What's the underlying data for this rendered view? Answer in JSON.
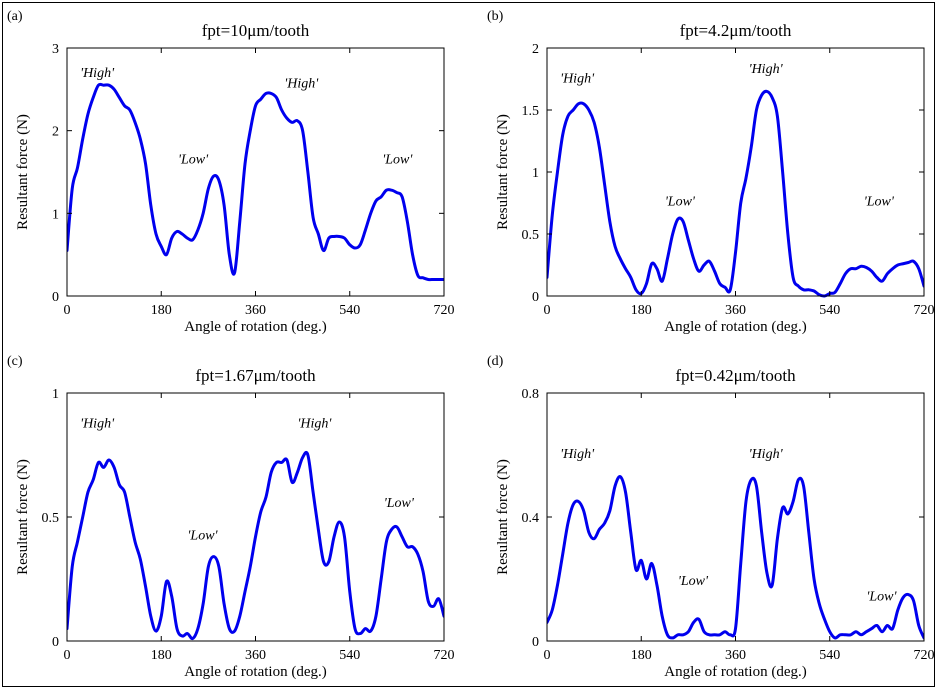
{
  "accent_color": "#0000ee",
  "chart_data": [
    {
      "type": "line",
      "panel_label": "(a)",
      "title": "fpt=10μm/tooth",
      "xlabel": "Angle of rotation (deg.)",
      "ylabel": "Resultant force (N)",
      "xlim": [
        0,
        720
      ],
      "ylim": [
        0,
        3
      ],
      "xticks": [
        0,
        180,
        360,
        540,
        720
      ],
      "yticks": [
        0,
        1,
        2,
        3
      ],
      "grid": false,
      "series": [
        {
          "color": "#0000ee",
          "x": [
            0,
            10,
            20,
            30,
            40,
            50,
            60,
            70,
            80,
            90,
            100,
            110,
            120,
            130,
            140,
            150,
            160,
            170,
            180,
            190,
            200,
            210,
            220,
            230,
            240,
            250,
            260,
            270,
            280,
            290,
            300,
            310,
            320,
            330,
            340,
            350,
            360,
            370,
            380,
            390,
            400,
            410,
            420,
            430,
            440,
            450,
            460,
            470,
            480,
            490,
            500,
            510,
            520,
            530,
            540,
            550,
            560,
            570,
            580,
            590,
            600,
            610,
            620,
            630,
            640,
            650,
            660,
            670,
            680,
            690,
            700,
            710,
            720
          ],
          "y": [
            0.55,
            1.3,
            1.55,
            1.9,
            2.2,
            2.4,
            2.55,
            2.55,
            2.55,
            2.5,
            2.4,
            2.3,
            2.25,
            2.1,
            1.9,
            1.6,
            1.1,
            0.75,
            0.6,
            0.5,
            0.7,
            0.78,
            0.75,
            0.7,
            0.68,
            0.8,
            1.0,
            1.3,
            1.45,
            1.4,
            1.1,
            0.5,
            0.28,
            0.9,
            1.6,
            2.0,
            2.3,
            2.38,
            2.45,
            2.45,
            2.4,
            2.25,
            2.15,
            2.1,
            2.12,
            2.0,
            1.5,
            0.95,
            0.75,
            0.55,
            0.7,
            0.72,
            0.72,
            0.7,
            0.62,
            0.58,
            0.62,
            0.8,
            1.0,
            1.15,
            1.2,
            1.28,
            1.28,
            1.25,
            1.2,
            0.9,
            0.5,
            0.25,
            0.22,
            0.2,
            0.2,
            0.2,
            0.2
          ]
        }
      ],
      "annotations": [
        {
          "text": "'High'",
          "x": 25,
          "y": 2.65
        },
        {
          "text": "'Low'",
          "x": 212,
          "y": 1.6
        },
        {
          "text": "'High'",
          "x": 415,
          "y": 2.52
        },
        {
          "text": "'Low'",
          "x": 602,
          "y": 1.6
        }
      ]
    },
    {
      "type": "line",
      "panel_label": "(b)",
      "title": "fpt=4.2μm/tooth",
      "xlabel": "Angle of rotation (deg.)",
      "ylabel": "Resultant force (N)",
      "xlim": [
        0,
        720
      ],
      "ylim": [
        0,
        2
      ],
      "xticks": [
        0,
        180,
        360,
        540,
        720
      ],
      "yticks": [
        0,
        0.5,
        1,
        1.5,
        2
      ],
      "grid": false,
      "series": [
        {
          "color": "#0000ee",
          "x": [
            0,
            10,
            20,
            30,
            40,
            50,
            60,
            70,
            80,
            90,
            100,
            110,
            120,
            130,
            140,
            150,
            160,
            170,
            180,
            190,
            200,
            210,
            220,
            230,
            240,
            250,
            260,
            270,
            280,
            290,
            300,
            310,
            320,
            330,
            340,
            350,
            360,
            370,
            380,
            390,
            400,
            410,
            420,
            430,
            440,
            450,
            460,
            470,
            480,
            490,
            500,
            510,
            520,
            530,
            540,
            550,
            560,
            570,
            580,
            590,
            600,
            610,
            620,
            630,
            640,
            650,
            660,
            670,
            680,
            690,
            700,
            710,
            720
          ],
          "y": [
            0.15,
            0.65,
            1.0,
            1.3,
            1.45,
            1.5,
            1.55,
            1.55,
            1.5,
            1.4,
            1.2,
            0.9,
            0.6,
            0.4,
            0.3,
            0.22,
            0.15,
            0.05,
            0.02,
            0.1,
            0.26,
            0.22,
            0.12,
            0.3,
            0.5,
            0.62,
            0.6,
            0.45,
            0.3,
            0.2,
            0.25,
            0.28,
            0.2,
            0.1,
            0.07,
            0.05,
            0.35,
            0.75,
            0.95,
            1.2,
            1.5,
            1.62,
            1.65,
            1.6,
            1.45,
            1.0,
            0.5,
            0.15,
            0.08,
            0.05,
            0.05,
            0.04,
            0.01,
            0.0,
            0.02,
            0.03,
            0.1,
            0.18,
            0.22,
            0.22,
            0.24,
            0.23,
            0.2,
            0.15,
            0.12,
            0.18,
            0.22,
            0.25,
            0.26,
            0.27,
            0.28,
            0.22,
            0.08
          ]
        }
      ],
      "annotations": [
        {
          "text": "'High'",
          "x": 25,
          "y": 1.72
        },
        {
          "text": "'Low'",
          "x": 225,
          "y": 0.73
        },
        {
          "text": "'High'",
          "x": 385,
          "y": 1.8
        },
        {
          "text": "'Low'",
          "x": 605,
          "y": 0.73
        }
      ]
    },
    {
      "type": "line",
      "panel_label": "(c)",
      "title": "fpt=1.67μm/tooth",
      "xlabel": "Angle of rotation (deg.)",
      "ylabel": "Resultant force (N)",
      "xlim": [
        0,
        720
      ],
      "ylim": [
        0,
        1
      ],
      "xticks": [
        0,
        180,
        360,
        540,
        720
      ],
      "yticks": [
        0,
        0.5,
        1
      ],
      "grid": false,
      "series": [
        {
          "color": "#0000ee",
          "x": [
            0,
            10,
            20,
            30,
            40,
            50,
            60,
            70,
            80,
            90,
            100,
            110,
            120,
            130,
            140,
            150,
            160,
            170,
            180,
            190,
            200,
            210,
            220,
            230,
            240,
            250,
            260,
            270,
            280,
            290,
            300,
            310,
            320,
            330,
            340,
            350,
            360,
            370,
            380,
            390,
            400,
            410,
            420,
            430,
            440,
            450,
            460,
            470,
            480,
            490,
            500,
            510,
            520,
            530,
            540,
            550,
            560,
            570,
            580,
            590,
            600,
            610,
            620,
            630,
            640,
            650,
            660,
            670,
            680,
            690,
            700,
            710,
            720
          ],
          "y": [
            0.05,
            0.3,
            0.4,
            0.5,
            0.6,
            0.65,
            0.72,
            0.7,
            0.73,
            0.7,
            0.63,
            0.6,
            0.5,
            0.4,
            0.33,
            0.22,
            0.1,
            0.04,
            0.1,
            0.24,
            0.18,
            0.05,
            0.02,
            0.03,
            0.01,
            0.05,
            0.15,
            0.3,
            0.34,
            0.3,
            0.15,
            0.05,
            0.04,
            0.1,
            0.2,
            0.3,
            0.42,
            0.52,
            0.58,
            0.68,
            0.72,
            0.72,
            0.73,
            0.64,
            0.68,
            0.74,
            0.75,
            0.6,
            0.45,
            0.32,
            0.32,
            0.42,
            0.48,
            0.42,
            0.2,
            0.05,
            0.03,
            0.05,
            0.04,
            0.1,
            0.25,
            0.4,
            0.45,
            0.46,
            0.42,
            0.38,
            0.38,
            0.35,
            0.28,
            0.16,
            0.14,
            0.17,
            0.1
          ]
        }
      ],
      "annotations": [
        {
          "text": "'High'",
          "x": 25,
          "y": 0.86
        },
        {
          "text": "'Low'",
          "x": 230,
          "y": 0.41
        },
        {
          "text": "'High'",
          "x": 440,
          "y": 0.86
        },
        {
          "text": "'Low'",
          "x": 605,
          "y": 0.54
        }
      ]
    },
    {
      "type": "line",
      "panel_label": "(d)",
      "title": "fpt=0.42μm/tooth",
      "xlabel": "Angle of rotation (deg.)",
      "ylabel": "Resultant force (N)",
      "xlim": [
        0,
        720
      ],
      "ylim": [
        0,
        0.8
      ],
      "xticks": [
        0,
        180,
        360,
        540,
        720
      ],
      "yticks": [
        0,
        0.4,
        0.8
      ],
      "grid": false,
      "series": [
        {
          "color": "#0000ee",
          "x": [
            0,
            10,
            20,
            30,
            40,
            50,
            60,
            70,
            80,
            90,
            100,
            110,
            120,
            130,
            140,
            150,
            160,
            170,
            180,
            190,
            200,
            210,
            220,
            230,
            240,
            250,
            260,
            270,
            280,
            290,
            300,
            310,
            320,
            330,
            340,
            350,
            360,
            370,
            380,
            390,
            400,
            410,
            420,
            430,
            440,
            450,
            460,
            470,
            480,
            490,
            500,
            510,
            520,
            530,
            540,
            550,
            560,
            570,
            580,
            590,
            600,
            610,
            620,
            630,
            640,
            650,
            660,
            670,
            680,
            690,
            700,
            710,
            720
          ],
          "y": [
            0.06,
            0.1,
            0.18,
            0.28,
            0.38,
            0.44,
            0.45,
            0.42,
            0.35,
            0.33,
            0.36,
            0.38,
            0.42,
            0.5,
            0.53,
            0.48,
            0.35,
            0.23,
            0.26,
            0.2,
            0.25,
            0.18,
            0.08,
            0.02,
            0.01,
            0.02,
            0.02,
            0.03,
            0.06,
            0.07,
            0.03,
            0.02,
            0.02,
            0.02,
            0.03,
            0.02,
            0.04,
            0.25,
            0.45,
            0.52,
            0.5,
            0.35,
            0.22,
            0.18,
            0.33,
            0.43,
            0.41,
            0.45,
            0.52,
            0.5,
            0.35,
            0.2,
            0.12,
            0.07,
            0.03,
            0.01,
            0.02,
            0.02,
            0.02,
            0.03,
            0.02,
            0.03,
            0.04,
            0.05,
            0.03,
            0.05,
            0.04,
            0.1,
            0.14,
            0.15,
            0.13,
            0.05,
            0.01
          ]
        }
      ],
      "annotations": [
        {
          "text": "'High'",
          "x": 25,
          "y": 0.59
        },
        {
          "text": "'Low'",
          "x": 250,
          "y": 0.18
        },
        {
          "text": "'High'",
          "x": 385,
          "y": 0.59
        },
        {
          "text": "'Low'",
          "x": 610,
          "y": 0.13
        }
      ]
    }
  ]
}
